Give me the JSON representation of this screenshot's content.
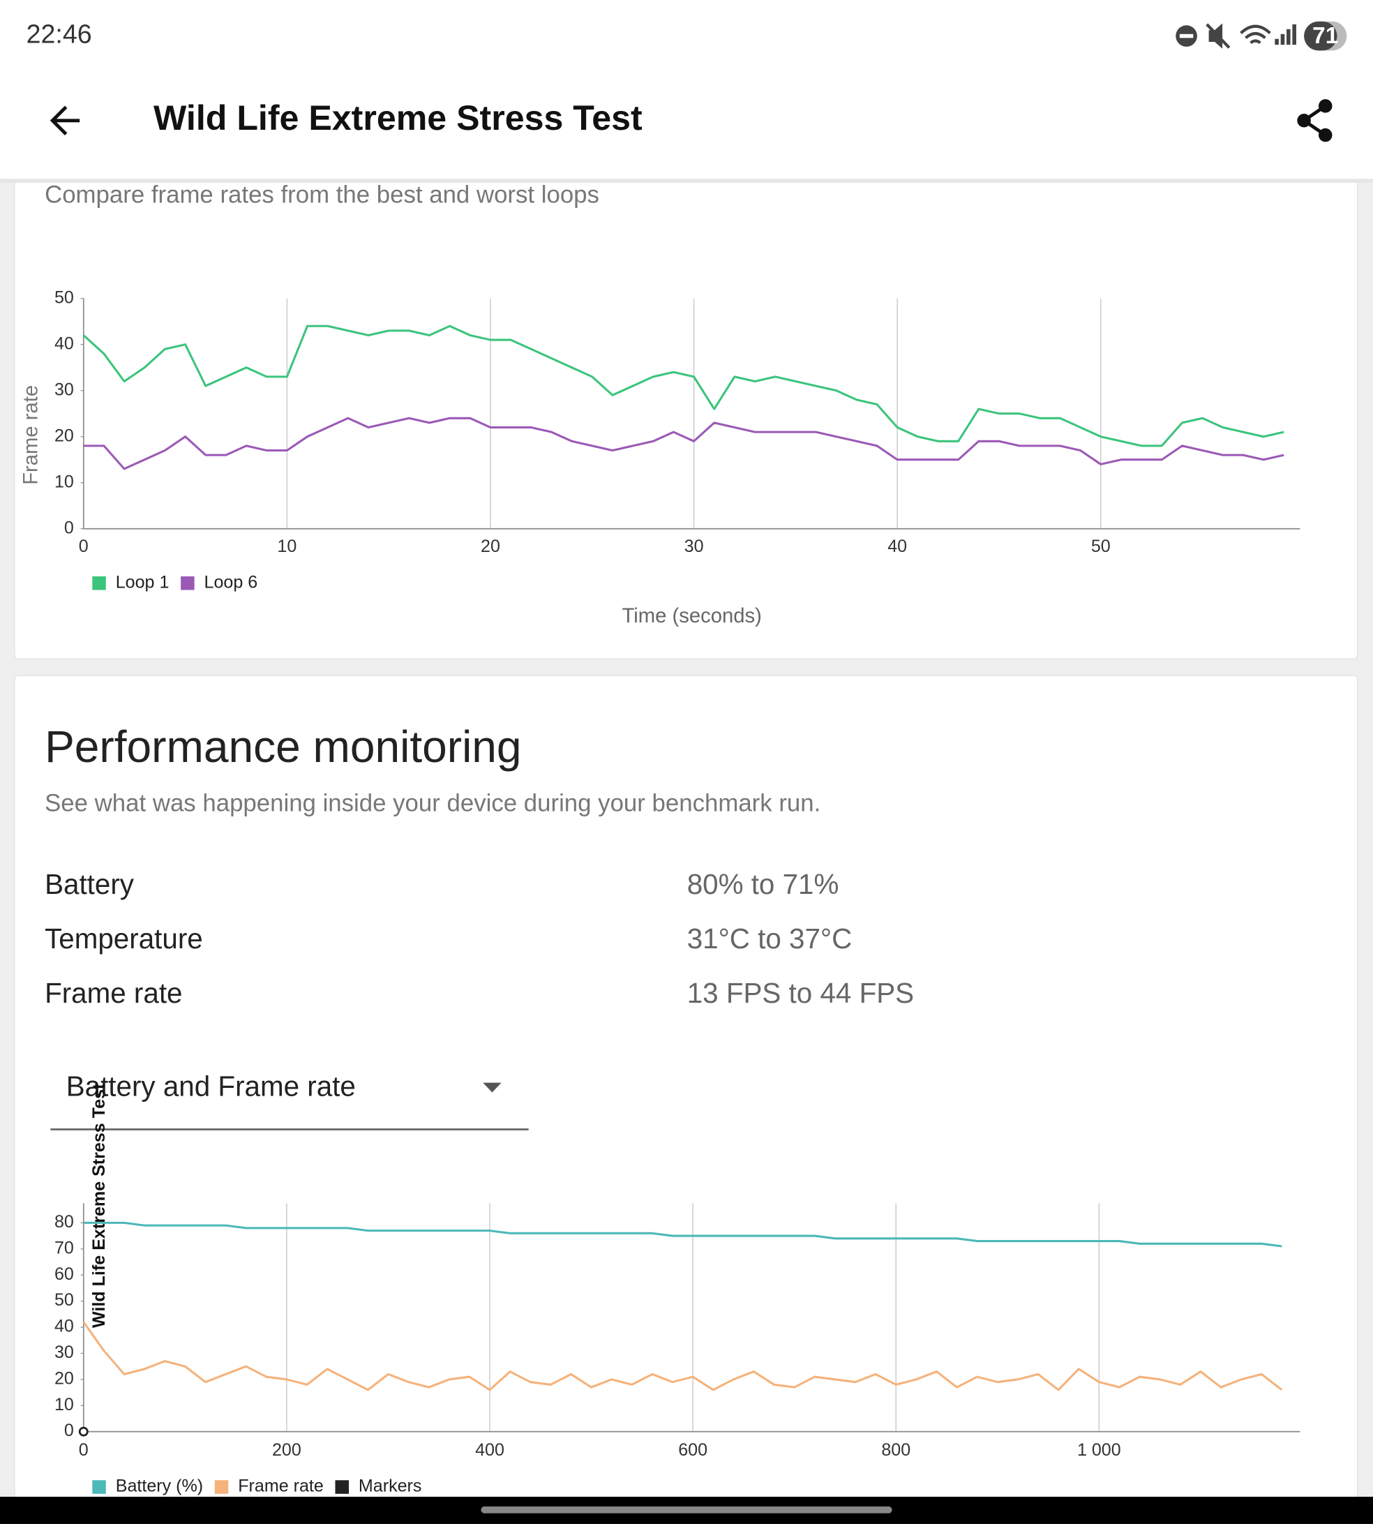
{
  "status_bar": {
    "time": "22:46",
    "battery": "71"
  },
  "app_bar": {
    "title": "Wild Life Extreme Stress Test"
  },
  "loop_card": {
    "subtitle": "Compare frame rates from the best and worst loops"
  },
  "performance": {
    "title": "Performance monitoring",
    "subtitle": "See what was happening inside your device during your benchmark run.",
    "rows": [
      {
        "label": "Battery",
        "value": "80% to 71%"
      },
      {
        "label": "Temperature",
        "value": "31°C to 37°C"
      },
      {
        "label": "Frame rate",
        "value": "13 FPS to 44 FPS"
      }
    ],
    "dropdown": "Battery and Frame rate"
  },
  "chart_data": [
    {
      "type": "line",
      "ylabel": "Frame rate",
      "xlabel": "Time (seconds)",
      "xlim": [
        0,
        59.8
      ],
      "ylim": [
        0,
        50
      ],
      "xticks": [
        0,
        10,
        20,
        30,
        40,
        50
      ],
      "yticks": [
        0,
        10,
        20,
        30,
        40,
        50
      ],
      "x": [
        0,
        1,
        2,
        3,
        4,
        5,
        6,
        7,
        8,
        9,
        10,
        11,
        12,
        13,
        14,
        15,
        16,
        17,
        18,
        19,
        20,
        21,
        22,
        23,
        24,
        25,
        26,
        27,
        28,
        29,
        30,
        31,
        32,
        33,
        34,
        35,
        36,
        37,
        38,
        39,
        40,
        41,
        42,
        43,
        44,
        45,
        46,
        47,
        48,
        49,
        50,
        51,
        52,
        53,
        54,
        55,
        56,
        57,
        58,
        59
      ],
      "series": [
        {
          "name": "Loop 1",
          "color": "#3cc47c",
          "values": [
            42,
            38,
            32,
            35,
            39,
            40,
            31,
            33,
            35,
            33,
            33,
            44,
            44,
            43,
            42,
            43,
            43,
            42,
            44,
            42,
            41,
            41,
            39,
            37,
            35,
            33,
            29,
            31,
            33,
            34,
            33,
            26,
            33,
            32,
            33,
            32,
            31,
            30,
            28,
            27,
            22,
            20,
            19,
            19,
            26,
            25,
            25,
            24,
            24,
            22,
            20,
            19,
            18,
            18,
            23,
            24,
            22,
            21,
            20,
            21
          ]
        },
        {
          "name": "Loop 6",
          "color": "#9b59b6",
          "values": [
            18,
            18,
            13,
            15,
            17,
            20,
            16,
            16,
            18,
            17,
            17,
            20,
            22,
            24,
            22,
            23,
            24,
            23,
            24,
            24,
            22,
            22,
            22,
            21,
            19,
            18,
            17,
            18,
            19,
            21,
            19,
            23,
            22,
            21,
            21,
            21,
            21,
            20,
            19,
            18,
            15,
            15,
            15,
            15,
            19,
            19,
            18,
            18,
            18,
            17,
            14,
            15,
            15,
            15,
            18,
            17,
            16,
            16,
            15,
            16
          ]
        }
      ]
    },
    {
      "type": "line",
      "ylabel": "Wild Life Extreme Stress Test",
      "xlim": [
        0,
        1198
      ],
      "ylim": [
        0,
        87.5
      ],
      "xticks": [
        0,
        200,
        400,
        600,
        800,
        {
          "value": 1000,
          "label": "1 000"
        }
      ],
      "yticks": [
        0,
        10,
        20,
        30,
        40,
        50,
        60,
        70,
        80
      ],
      "x": [
        0,
        20,
        40,
        60,
        80,
        100,
        120,
        140,
        160,
        180,
        200,
        220,
        240,
        260,
        280,
        300,
        320,
        340,
        360,
        380,
        400,
        420,
        440,
        460,
        480,
        500,
        520,
        540,
        560,
        580,
        600,
        620,
        640,
        660,
        680,
        700,
        720,
        740,
        760,
        780,
        800,
        820,
        840,
        860,
        880,
        900,
        920,
        940,
        960,
        980,
        1000,
        1020,
        1040,
        1060,
        1080,
        1100,
        1120,
        1140,
        1160,
        1180
      ],
      "series": [
        {
          "name": "Battery (%)",
          "color": "#4cb8b8",
          "values": [
            80,
            80,
            80,
            79,
            79,
            79,
            79,
            79,
            78,
            78,
            78,
            78,
            78,
            78,
            77,
            77,
            77,
            77,
            77,
            77,
            77,
            76,
            76,
            76,
            76,
            76,
            76,
            76,
            76,
            75,
            75,
            75,
            75,
            75,
            75,
            75,
            75,
            74,
            74,
            74,
            74,
            74,
            74,
            74,
            73,
            73,
            73,
            73,
            73,
            73,
            73,
            73,
            72,
            72,
            72,
            72,
            72,
            72,
            72,
            71
          ]
        },
        {
          "name": "Frame rate",
          "color": "#f5b27a",
          "values": [
            42,
            31,
            22,
            24,
            27,
            25,
            19,
            22,
            25,
            21,
            20,
            18,
            24,
            20,
            16,
            22,
            19,
            17,
            20,
            21,
            16,
            23,
            19,
            18,
            22,
            17,
            20,
            18,
            22,
            19,
            21,
            16,
            20,
            23,
            18,
            17,
            21,
            20,
            19,
            22,
            18,
            20,
            23,
            17,
            21,
            19,
            20,
            22,
            16,
            24,
            19,
            17,
            21,
            20,
            18,
            23,
            17,
            20,
            22,
            16
          ]
        }
      ],
      "markers": {
        "name": "Markers",
        "color": "#222222",
        "x": [
          0
        ],
        "values": [
          0
        ]
      }
    }
  ]
}
